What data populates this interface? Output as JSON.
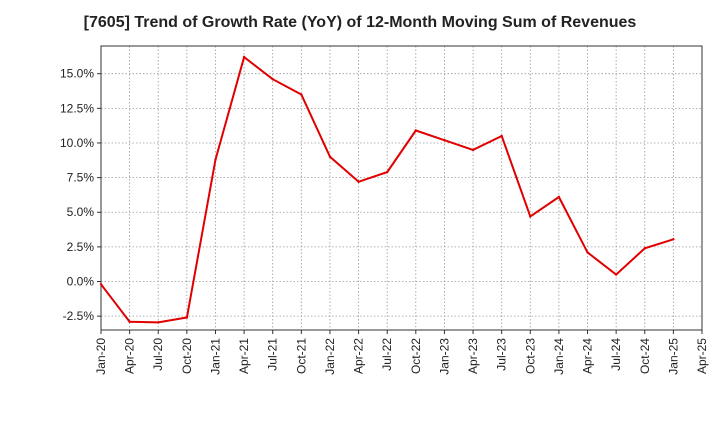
{
  "chart_data": {
    "type": "line",
    "title": "[7605]  Trend of Growth Rate (YoY) of 12-Month Moving Sum of Revenues",
    "xlabel": "",
    "ylabel": "",
    "x_ticks": [
      "Jan-20",
      "Apr-20",
      "Jul-20",
      "Oct-20",
      "Jan-21",
      "Apr-21",
      "Jul-21",
      "Oct-21",
      "Jan-22",
      "Apr-22",
      "Jul-22",
      "Oct-22",
      "Jan-23",
      "Apr-23",
      "Jul-23",
      "Oct-23",
      "Jan-24",
      "Apr-24",
      "Jul-24",
      "Oct-24",
      "Jan-25",
      "Apr-25"
    ],
    "y_ticks": [
      -2.5,
      0.0,
      2.5,
      5.0,
      7.5,
      10.0,
      12.5,
      15.0
    ],
    "y_tick_labels": [
      "-2.5%",
      "0.0%",
      "2.5%",
      "5.0%",
      "7.5%",
      "10.0%",
      "12.5%",
      "15.0%"
    ],
    "ylim": [
      -3.5,
      17.0
    ],
    "grid": true,
    "series": [
      {
        "color": "#e00000",
        "x": [
          "Jan-20",
          "Apr-20",
          "Jul-20",
          "Oct-20",
          "Jan-21",
          "Apr-21",
          "Jul-21",
          "Oct-21",
          "Jan-22",
          "Apr-22",
          "Jul-22",
          "Oct-22",
          "Jan-23",
          "Apr-23",
          "Jul-23",
          "Oct-23",
          "Jan-24",
          "Apr-24",
          "Jul-24",
          "Oct-24",
          "Jan-25"
        ],
        "values": [
          -0.2,
          -2.9,
          -2.95,
          -2.6,
          8.8,
          16.2,
          14.6,
          13.5,
          9.0,
          7.2,
          7.9,
          10.9,
          10.2,
          9.5,
          10.5,
          4.7,
          6.1,
          2.1,
          0.5,
          2.4,
          3.05
        ]
      }
    ]
  }
}
